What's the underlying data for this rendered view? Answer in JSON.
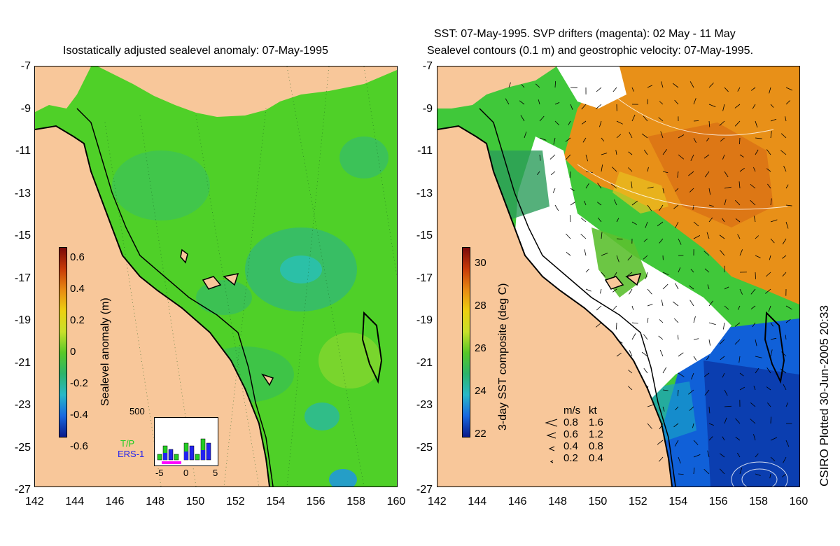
{
  "left": {
    "title": "Isostatically adjusted sealevel anomaly: 07-May-1995",
    "colorbar_label": "Sealevel anomaly (m)",
    "colorbar_ticks": [
      "0.6",
      "0.4",
      "0.2",
      "0",
      "-0.2",
      "-0.4",
      "-0.6"
    ],
    "inset": {
      "ymax": "500",
      "xticks": [
        "-5",
        "0",
        "5"
      ],
      "legend_tp": "T/P",
      "legend_ers": "ERS-1",
      "tp_color": "#22cc22",
      "ers_color": "#2222ee",
      "drift_color": "#ff00ff"
    }
  },
  "right": {
    "title_line1": "SST: 07-May-1995. SVP drifters (magenta): 02 May - 11 May",
    "title_line2": "Sealevel contours (0.1 m) and geostrophic velocity: 07-May-1995.",
    "colorbar_label": "3-day SST composite (deg C)",
    "colorbar_ticks": [
      "30",
      "28",
      "26",
      "24",
      "22"
    ],
    "speed_legend": {
      "header_ms": "m/s",
      "header_kt": "kt",
      "rows": [
        {
          "ms": "0.8",
          "kt": "1.6"
        },
        {
          "ms": "0.6",
          "kt": "1.2"
        },
        {
          "ms": "0.4",
          "kt": "0.8"
        },
        {
          "ms": "0.2",
          "kt": "0.4"
        }
      ]
    }
  },
  "axes": {
    "lat_ticks": [
      "-7",
      "-9",
      "-11",
      "-13",
      "-15",
      "-17",
      "-19",
      "-21",
      "-23",
      "-25",
      "-27"
    ],
    "lon_ticks": [
      "142",
      "144",
      "146",
      "148",
      "150",
      "152",
      "154",
      "156",
      "158",
      "160"
    ]
  },
  "credit": "CSIRO Plotted 30-Jun-2005 20:33",
  "colors": {
    "land": "#f8c79a",
    "sea_green": "#44cc22",
    "sst_orange": "#e89018",
    "sst_blue": "#1060d8",
    "cloud": "#ffffff"
  }
}
